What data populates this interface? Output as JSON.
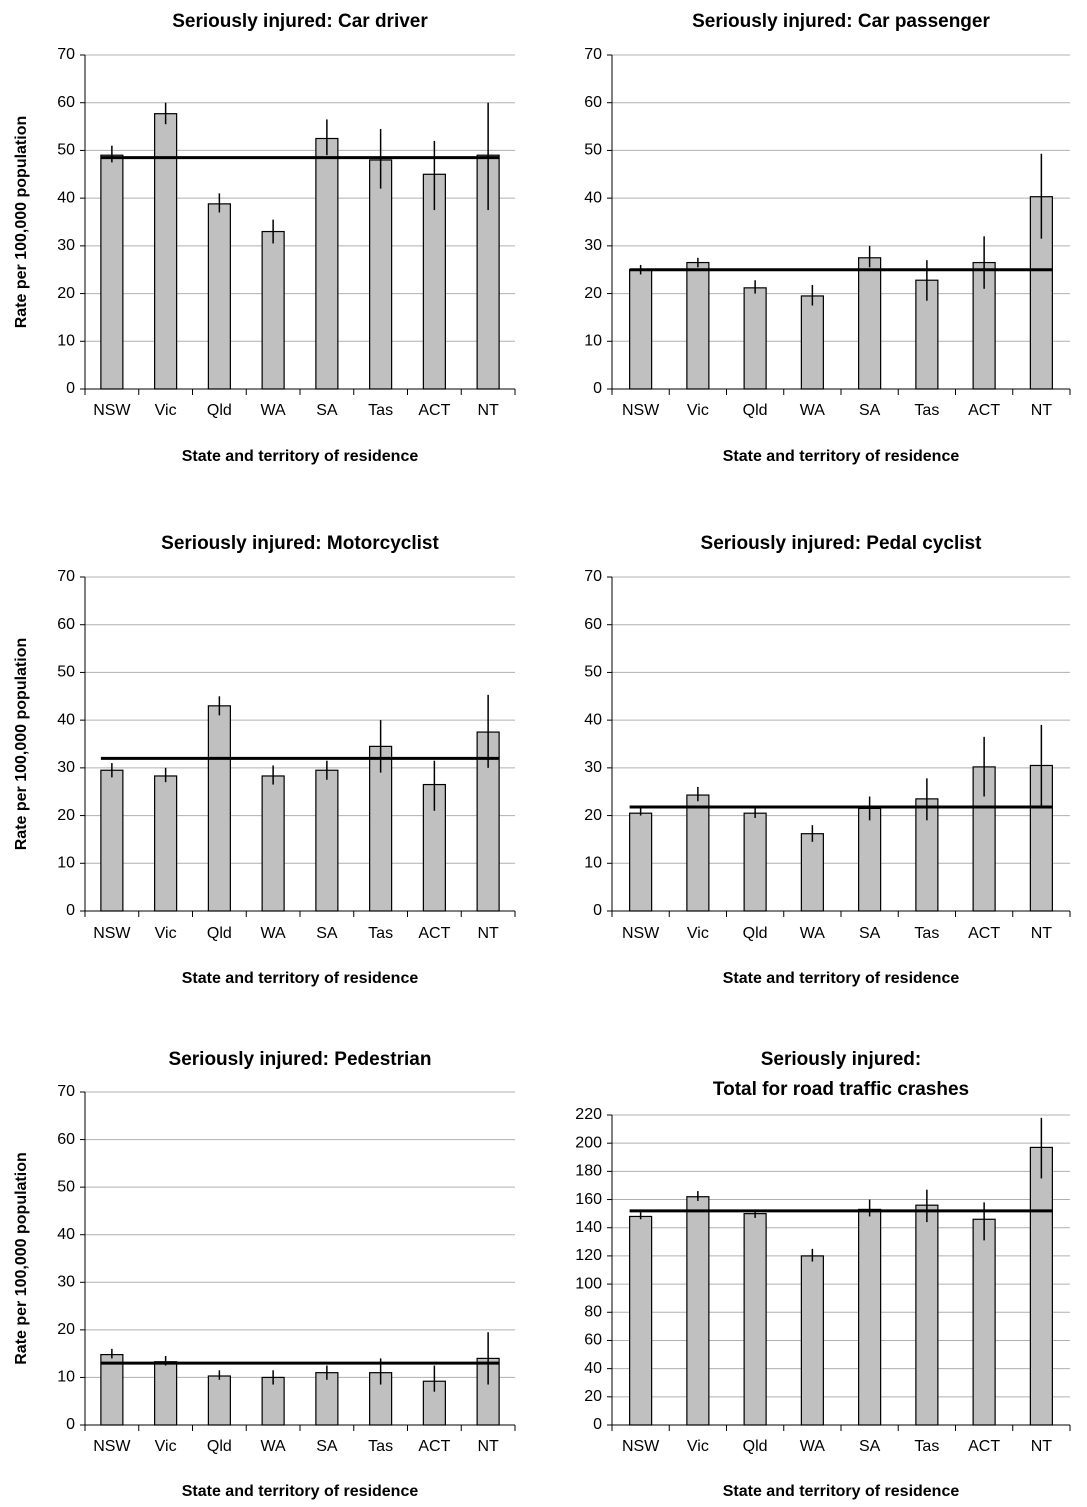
{
  "chart_data": [
    {
      "type": "bar",
      "title": "Seriously injured: Car driver",
      "xlabel": "State and territory of residence",
      "ylabel": "Rate per 100,000 population",
      "categories": [
        "NSW",
        "Vic",
        "Qld",
        "WA",
        "SA",
        "Tas",
        "ACT",
        "NT"
      ],
      "values": [
        49,
        57.7,
        38.8,
        33,
        52.5,
        48,
        45,
        49
      ],
      "ci_low": [
        47.5,
        55.5,
        37,
        30.5,
        49,
        42,
        37.5,
        37.5
      ],
      "ci_high": [
        51,
        60,
        41,
        35.5,
        56.5,
        54.5,
        52,
        60
      ],
      "reference_line": 48.5,
      "color": "#c0c0c0",
      "ylim": [
        0,
        70
      ],
      "yticks": [
        0,
        10,
        20,
        30,
        40,
        50,
        60,
        70
      ],
      "grid": true
    },
    {
      "type": "bar",
      "title": "Seriously injured: Car passenger",
      "xlabel": "State and territory of residence",
      "categories": [
        "NSW",
        "Vic",
        "Qld",
        "WA",
        "SA",
        "Tas",
        "ACT",
        "NT"
      ],
      "values": [
        25,
        26.5,
        21.2,
        19.5,
        27.5,
        22.8,
        26.5,
        40.3
      ],
      "ci_low": [
        24,
        25.5,
        20,
        17.5,
        25.5,
        18.5,
        21,
        31.5
      ],
      "ci_high": [
        26,
        27.5,
        22.8,
        21.8,
        30,
        27,
        32,
        49.3
      ],
      "reference_line": 25,
      "color": "#c0c0c0",
      "ylim": [
        0,
        70
      ],
      "yticks": [
        0,
        10,
        20,
        30,
        40,
        50,
        60,
        70
      ],
      "grid": true
    },
    {
      "type": "bar",
      "title": "Seriously injured: Motorcyclist",
      "xlabel": "State and territory of residence",
      "ylabel": "Rate per 100,000 population",
      "categories": [
        "NSW",
        "Vic",
        "Qld",
        "WA",
        "SA",
        "Tas",
        "ACT",
        "NT"
      ],
      "values": [
        29.5,
        28.3,
        43,
        28.3,
        29.5,
        34.5,
        26.5,
        37.5
      ],
      "ci_low": [
        28,
        27,
        41,
        26.5,
        27.5,
        29,
        21,
        30
      ],
      "ci_high": [
        31,
        30,
        45,
        30.5,
        31.5,
        40,
        31.5,
        45.3
      ],
      "reference_line": 32,
      "color": "#c0c0c0",
      "ylim": [
        0,
        70
      ],
      "yticks": [
        0,
        10,
        20,
        30,
        40,
        50,
        60,
        70
      ],
      "grid": true
    },
    {
      "type": "bar",
      "title": "Seriously injured: Pedal cyclist",
      "xlabel": "State and territory of residence",
      "categories": [
        "NSW",
        "Vic",
        "Qld",
        "WA",
        "SA",
        "Tas",
        "ACT",
        "NT"
      ],
      "values": [
        20.5,
        24.3,
        20.5,
        16.2,
        21.5,
        23.5,
        30.2,
        30.5
      ],
      "ci_low": [
        20,
        23,
        19.5,
        14.5,
        19,
        19,
        24,
        22
      ],
      "ci_high": [
        21.5,
        26,
        21.8,
        18,
        24,
        27.8,
        36.5,
        39
      ],
      "reference_line": 21.8,
      "color": "#c0c0c0",
      "ylim": [
        0,
        70
      ],
      "yticks": [
        0,
        10,
        20,
        30,
        40,
        50,
        60,
        70
      ],
      "grid": true
    },
    {
      "type": "bar",
      "title": "Seriously injured: Pedestrian",
      "xlabel": "State and territory of residence",
      "ylabel": "Rate per 100,000 population",
      "categories": [
        "NSW",
        "Vic",
        "Qld",
        "WA",
        "SA",
        "Tas",
        "ACT",
        "NT"
      ],
      "values": [
        14.8,
        13.3,
        10.3,
        10,
        11,
        11,
        9.2,
        14
      ],
      "ci_low": [
        14,
        12.5,
        9.5,
        8.5,
        9.5,
        8.5,
        7,
        8.5
      ],
      "ci_high": [
        16,
        14.5,
        11.5,
        11.5,
        12.5,
        14,
        12.5,
        19.5
      ],
      "reference_line": 13,
      "color": "#c0c0c0",
      "ylim": [
        0,
        70
      ],
      "yticks": [
        0,
        10,
        20,
        30,
        40,
        50,
        60,
        70
      ],
      "grid": true
    },
    {
      "type": "bar",
      "title": [
        "Seriously injured:",
        "Total for road traffic crashes"
      ],
      "xlabel": "State and territory of residence",
      "categories": [
        "NSW",
        "Vic",
        "Qld",
        "WA",
        "SA",
        "Tas",
        "ACT",
        "NT"
      ],
      "values": [
        148,
        162,
        150,
        120,
        153,
        156,
        146,
        197
      ],
      "ci_low": [
        146,
        159,
        147,
        116,
        148,
        144,
        131,
        175
      ],
      "ci_high": [
        151,
        166,
        153,
        125,
        160,
        167,
        158,
        218
      ],
      "reference_line": 152,
      "color": "#c0c0c0",
      "ylim": [
        0,
        220
      ],
      "yticks": [
        0,
        20,
        40,
        60,
        80,
        100,
        120,
        140,
        160,
        180,
        200,
        220
      ],
      "grid": true
    }
  ]
}
